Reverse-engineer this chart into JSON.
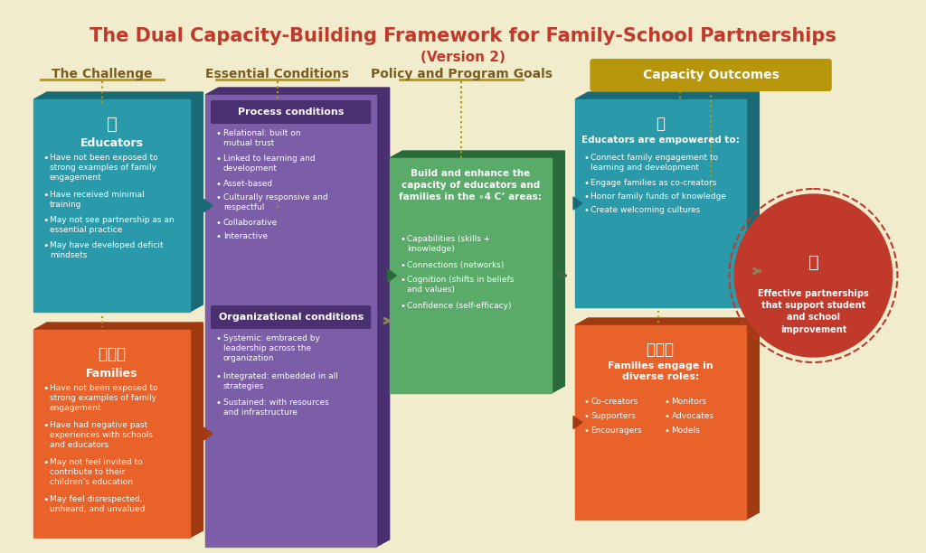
{
  "title": "The Dual Capacity-Building Framework for Family-School Partnerships",
  "subtitle": "(Version 2)",
  "bg_color": "#f0eccc",
  "title_color": "#c0392b",
  "subtitle_color": "#c0392b",
  "col_headers": [
    "The Challenge",
    "Essential Conditions",
    "Policy and Program Goals",
    "Capacity Outcomes"
  ],
  "col_header_color": "#7a5c1e",
  "col_header_line_color": "#b8960c",
  "educators_color": "#2a9aaa",
  "educators_shadow": "#1a6a75",
  "families_color": "#e8622a",
  "families_shadow": "#a03a10",
  "conditions_color": "#7b5ea7",
  "conditions_shadow": "#4a3070",
  "conditions_header_color": "#4a3070",
  "policy_color": "#5aaa6a",
  "policy_shadow": "#2a6a3a",
  "capacity_edu_color": "#2a9aaa",
  "capacity_edu_shadow": "#1a6a75",
  "capacity_fam_color": "#e8622a",
  "capacity_fam_shadow": "#a03a10",
  "outcomes_color": "#c0392b",
  "outcomes_shadow": "#800000",
  "outcomes_circle_color": "#c0392b",
  "gold_banner_color": "#b8960c",
  "arrow_color": "#b8960c",
  "educators_title": "Educators",
  "educators_bullets": [
    "Have not been exposed to\nstrong examples of family\nengagement",
    "Have received minimal\ntraining",
    "May not see partnership as an\nessential practice",
    "May have developed deficit\nmindsets"
  ],
  "families_title": "Families",
  "families_bullets": [
    "Have not been exposed to\nstrong examples of family\nengagement",
    "Have had negative past\nexperiences with schools\nand educators",
    "May not feel invited to\ncontribute to their\nchildren’s education",
    "May feel disrespected,\nunheard, and unvalued"
  ],
  "process_title": "Process conditions",
  "process_bullets": [
    "Relational: built on\nmutual trust",
    "Linked to learning and\ndevelopment",
    "Asset-based",
    "Culturally responsive and\nrespectful",
    "Collaborative",
    "Interactive"
  ],
  "org_title": "Organizational conditions",
  "org_bullets": [
    "Systemic: embraced by\nleadership across the\norganization",
    "Integrated: embedded in all\nstrategies",
    "Sustained: with resources\nand infrastructure"
  ],
  "policy_main": "Build and enhance the\ncapacity of educators and\nfamilies in the ∘4 C’ areas:",
  "policy_bullets": [
    "Capabilities (skills +\nknowledge)",
    "Connections (networks)",
    "Cognition (shifts in beliefs\nand values)",
    "Confidence (self-efficacy)"
  ],
  "cap_edu_title": "Educators are empowered to:",
  "cap_edu_bullets": [
    "Connect family engagement to\nlearning and development",
    "Engage families as co-creators",
    "Honor family funds of knowledge",
    "Create welcoming cultures"
  ],
  "cap_fam_title": "Families engage in\ndiverse roles:",
  "cap_fam_col1": [
    "Co-creators",
    "Supporters",
    "Encouragers"
  ],
  "cap_fam_col2": [
    "Monitors",
    "Advocates",
    "Models"
  ],
  "outcomes_text": "Effective partnerships\nthat support student\nand school\nimprovement"
}
